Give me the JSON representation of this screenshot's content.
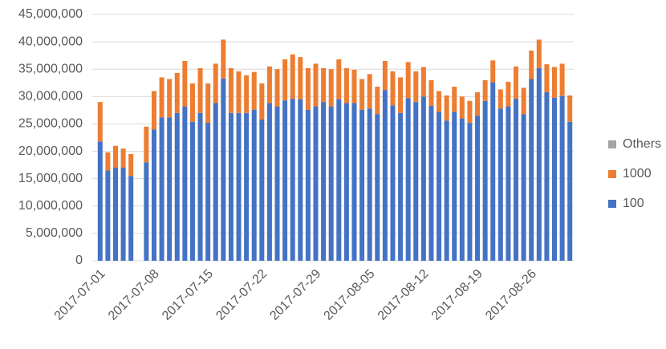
{
  "chart_data": {
    "type": "stacked_bar",
    "categories": [
      "2017-07-01",
      null,
      null,
      null,
      null,
      null,
      null,
      "2017-07-08",
      null,
      null,
      null,
      null,
      null,
      null,
      "2017-07-15",
      null,
      null,
      null,
      null,
      null,
      null,
      "2017-07-22",
      null,
      null,
      null,
      null,
      null,
      null,
      "2017-07-29",
      null,
      null,
      null,
      null,
      null,
      null,
      "2017-08-05",
      null,
      null,
      null,
      null,
      null,
      null,
      "2017-08-12",
      null,
      null,
      null,
      null,
      null,
      null,
      "2017-08-19",
      null,
      null,
      null,
      null,
      null,
      null,
      "2017-08-26",
      null,
      null,
      null,
      null,
      null
    ],
    "series": [
      {
        "name": "100",
        "color": "#4472c4",
        "values": [
          21800000,
          16500000,
          17000000,
          17000000,
          15500000,
          null,
          18000000,
          24000000,
          26200000,
          26200000,
          27000000,
          28200000,
          25400000,
          27000000,
          25200000,
          28800000,
          33300000,
          27000000,
          27000000,
          27000000,
          27600000,
          25800000,
          28800000,
          28200000,
          29300000,
          29600000,
          29500000,
          27600000,
          28200000,
          29000000,
          28200000,
          29500000,
          28800000,
          28800000,
          27600000,
          27800000,
          26800000,
          31200000,
          28400000,
          27000000,
          29700000,
          29000000,
          30000000,
          28300000,
          27200000,
          25600000,
          27200000,
          26000000,
          25200000,
          26500000,
          29200000,
          32600000,
          27800000,
          28200000,
          29600000,
          26800000,
          33200000,
          35200000,
          30800000,
          29800000,
          30100000,
          25400000
        ]
      },
      {
        "name": "1000",
        "color": "#ed7d31",
        "values": [
          7200000,
          3300000,
          4000000,
          3500000,
          4000000,
          null,
          6500000,
          7000000,
          7300000,
          7000000,
          7300000,
          8300000,
          7000000,
          8200000,
          7200000,
          7200000,
          7100000,
          8200000,
          7600000,
          6900000,
          6900000,
          6600000,
          6700000,
          6800000,
          7500000,
          8100000,
          7700000,
          7600000,
          7800000,
          6200000,
          6800000,
          7300000,
          6400000,
          6100000,
          5600000,
          6300000,
          5000000,
          5300000,
          6200000,
          6500000,
          6600000,
          5600000,
          5400000,
          4700000,
          3800000,
          4600000,
          4600000,
          4000000,
          4000000,
          4300000,
          3800000,
          4000000,
          3500000,
          4500000,
          5900000,
          4800000,
          5200000,
          5200000,
          5100000,
          5600000,
          5900000,
          4800000
        ]
      },
      {
        "name": "Others",
        "color": "#a5a5a5",
        "values": [
          0,
          0,
          0,
          0,
          0,
          null,
          0,
          0,
          0,
          0,
          0,
          0,
          0,
          0,
          0,
          0,
          0,
          0,
          0,
          0,
          0,
          0,
          0,
          0,
          0,
          0,
          0,
          0,
          0,
          0,
          0,
          0,
          0,
          0,
          0,
          0,
          0,
          0,
          0,
          0,
          0,
          0,
          0,
          0,
          0,
          0,
          0,
          0,
          0,
          0,
          0,
          0,
          0,
          0,
          0,
          0,
          0,
          0,
          0,
          0,
          0,
          0
        ]
      }
    ],
    "ylim": [
      0,
      45000000
    ],
    "yticks": [
      0,
      {
        "value": 5000000,
        "label": "5,000,000"
      },
      {
        "value": 10000000,
        "label": "10,000,000"
      },
      {
        "value": 15000000,
        "label": "15,000,000"
      },
      {
        "value": 20000000,
        "label": "20,000,000"
      },
      {
        "value": 25000000,
        "label": "25,000,000"
      },
      {
        "value": 30000000,
        "label": "30,000,000"
      },
      {
        "value": 35000000,
        "label": "35,000,000"
      },
      {
        "value": 40000000,
        "label": "40,000,000"
      },
      {
        "value": 45000000,
        "label": "45,000,000"
      }
    ],
    "grid": true,
    "legend": "right"
  }
}
